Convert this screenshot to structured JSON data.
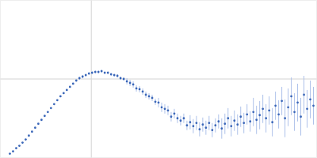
{
  "chart_data": {
    "type": "scatter",
    "color": "#3a66b8",
    "marker": "circle",
    "grid": true,
    "tick_labels": false,
    "xlim": [
      0,
      4
    ],
    "ylim": [
      0,
      2
    ],
    "xticks": [
      1.15
    ],
    "yticks": [
      1
    ],
    "x": [
      0.12,
      0.16,
      0.2,
      0.24,
      0.28,
      0.32,
      0.36,
      0.4,
      0.44,
      0.48,
      0.52,
      0.56,
      0.6,
      0.64,
      0.68,
      0.72,
      0.76,
      0.8,
      0.84,
      0.88,
      0.92,
      0.96,
      1.0,
      1.04,
      1.08,
      1.12,
      1.16,
      1.2,
      1.24,
      1.28,
      1.32,
      1.36,
      1.4,
      1.44,
      1.48,
      1.52,
      1.56,
      1.6,
      1.64,
      1.68,
      1.72,
      1.76,
      1.8,
      1.84,
      1.88,
      1.92,
      1.96,
      2.0,
      2.04,
      2.08,
      2.12,
      2.16,
      2.2,
      2.24,
      2.28,
      2.32,
      2.36,
      2.4,
      2.44,
      2.48,
      2.52,
      2.56,
      2.6,
      2.64,
      2.68,
      2.72,
      2.76,
      2.8,
      2.84,
      2.88,
      2.92,
      2.96,
      3.0,
      3.04,
      3.08,
      3.12,
      3.16,
      3.2,
      3.24,
      3.28,
      3.32,
      3.36,
      3.4,
      3.44,
      3.48,
      3.52,
      3.56,
      3.6,
      3.64,
      3.68,
      3.72,
      3.76,
      3.8,
      3.84,
      3.88,
      3.92,
      3.96
    ],
    "values": [
      0.05,
      0.08,
      0.12,
      0.15,
      0.19,
      0.23,
      0.28,
      0.33,
      0.38,
      0.43,
      0.48,
      0.53,
      0.58,
      0.63,
      0.68,
      0.73,
      0.78,
      0.82,
      0.86,
      0.9,
      0.94,
      0.98,
      1.01,
      1.03,
      1.05,
      1.07,
      1.08,
      1.09,
      1.09,
      1.1,
      1.08,
      1.08,
      1.06,
      1.05,
      1.04,
      1.01,
      1.0,
      0.97,
      0.95,
      0.93,
      0.88,
      0.87,
      0.84,
      0.8,
      0.78,
      0.76,
      0.71,
      0.7,
      0.64,
      0.62,
      0.6,
      0.52,
      0.56,
      0.5,
      0.47,
      0.5,
      0.41,
      0.45,
      0.4,
      0.44,
      0.36,
      0.42,
      0.38,
      0.44,
      0.35,
      0.41,
      0.46,
      0.37,
      0.43,
      0.5,
      0.4,
      0.47,
      0.42,
      0.52,
      0.44,
      0.55,
      0.46,
      0.58,
      0.48,
      0.54,
      0.62,
      0.5,
      0.6,
      0.45,
      0.66,
      0.55,
      0.72,
      0.5,
      0.64,
      0.78,
      0.58,
      0.7,
      0.52,
      0.8,
      0.62,
      0.74,
      0.66
    ],
    "errors": [
      0.01,
      0.01,
      0.01,
      0.01,
      0.01,
      0.01,
      0.01,
      0.01,
      0.01,
      0.01,
      0.01,
      0.01,
      0.01,
      0.01,
      0.01,
      0.01,
      0.01,
      0.01,
      0.01,
      0.01,
      0.01,
      0.01,
      0.02,
      0.02,
      0.02,
      0.02,
      0.02,
      0.02,
      0.02,
      0.02,
      0.02,
      0.02,
      0.02,
      0.02,
      0.02,
      0.02,
      0.02,
      0.04,
      0.04,
      0.04,
      0.04,
      0.04,
      0.04,
      0.04,
      0.04,
      0.04,
      0.04,
      0.06,
      0.06,
      0.06,
      0.06,
      0.06,
      0.06,
      0.06,
      0.06,
      0.06,
      0.06,
      0.09,
      0.09,
      0.09,
      0.09,
      0.09,
      0.09,
      0.09,
      0.09,
      0.09,
      0.09,
      0.13,
      0.13,
      0.13,
      0.13,
      0.13,
      0.13,
      0.13,
      0.13,
      0.13,
      0.13,
      0.18,
      0.18,
      0.18,
      0.18,
      0.18,
      0.18,
      0.18,
      0.18,
      0.18,
      0.18,
      0.24,
      0.24,
      0.24,
      0.24,
      0.24,
      0.24,
      0.24,
      0.24,
      0.24,
      0.24
    ]
  }
}
